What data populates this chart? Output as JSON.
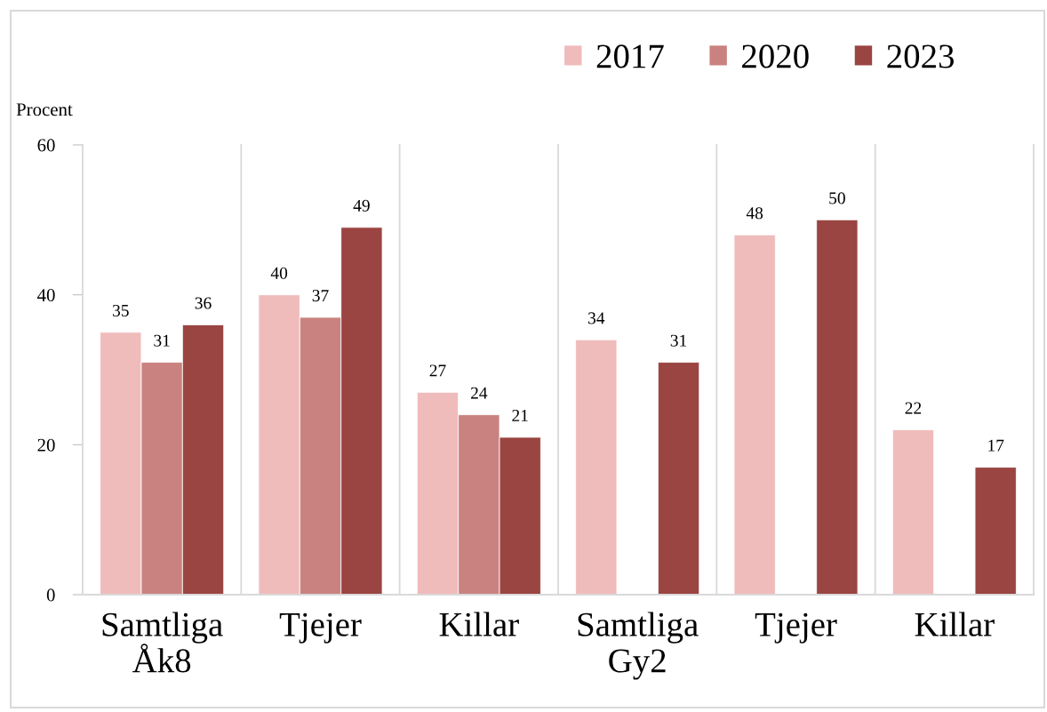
{
  "chart_data": {
    "type": "bar",
    "ylabel": "Procent",
    "categories": [
      "Samtliga\nÅk8",
      "Tjejer",
      "Killar",
      "Samtliga\nGy2",
      "Tjejer",
      "Killar"
    ],
    "series": [
      {
        "name": "2017",
        "color": "#efbcbb",
        "values": [
          35,
          40,
          27,
          34,
          48,
          22
        ]
      },
      {
        "name": "2020",
        "color": "#c9827f",
        "values": [
          31,
          37,
          24,
          null,
          null,
          null
        ]
      },
      {
        "name": "2023",
        "color": "#9a4542",
        "values": [
          36,
          49,
          21,
          31,
          50,
          17
        ]
      }
    ],
    "ylim": [
      0,
      60
    ],
    "yticks": [
      0,
      20,
      40,
      60
    ],
    "grid": "x",
    "legend": "top right",
    "data_labels": true
  }
}
